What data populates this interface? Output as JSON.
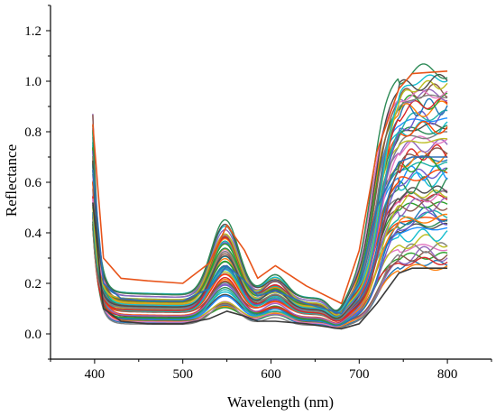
{
  "chart_data": {
    "type": "line",
    "xlabel": "Wavelength (nm)",
    "ylabel": "Reflectance",
    "xlim": [
      350,
      850
    ],
    "ylim": [
      -0.1,
      1.3
    ],
    "x_ticks": [
      400,
      500,
      600,
      700,
      800
    ],
    "x_tick_labels": [
      "400",
      "500",
      "600",
      "700",
      "800"
    ],
    "y_ticks": [
      0.0,
      0.2,
      0.4,
      0.6,
      0.8,
      1.0,
      1.2
    ],
    "y_tick_labels": [
      "0.0",
      "0.2",
      "0.4",
      "0.6",
      "0.8",
      "1.0",
      "1.2"
    ],
    "grid": false,
    "legend": "none",
    "series_count": 60,
    "x": [
      398,
      402,
      410,
      420,
      440,
      460,
      480,
      500,
      515,
      530,
      545,
      552,
      565,
      580,
      590,
      605,
      620,
      640,
      660,
      675,
      690,
      700,
      720,
      740,
      760,
      780,
      800
    ],
    "reference_series": [
      {
        "x": [
          398,
          410,
          430,
          460,
          500,
          530,
          550,
          570,
          585,
          605,
          640,
          680,
          700,
          720,
          745,
          760,
          800
        ],
        "y": [
          0.83,
          0.3,
          0.22,
          0.21,
          0.2,
          0.28,
          0.43,
          0.33,
          0.22,
          0.27,
          0.19,
          0.12,
          0.33,
          0.72,
          0.97,
          1.03,
          1.04
        ]
      },
      {
        "x": [
          398,
          410,
          430,
          460,
          500,
          530,
          550,
          570,
          585,
          605,
          640,
          680,
          700,
          720,
          745,
          760,
          800
        ],
        "y": [
          0.52,
          0.1,
          0.05,
          0.04,
          0.04,
          0.06,
          0.09,
          0.07,
          0.05,
          0.05,
          0.04,
          0.02,
          0.04,
          0.12,
          0.24,
          0.26,
          0.26
        ]
      },
      {
        "x": [
          398,
          410,
          430,
          460,
          500,
          530,
          550,
          570,
          585,
          605,
          640,
          680,
          700,
          720,
          745,
          760,
          800
        ],
        "y": [
          0.65,
          0.2,
          0.14,
          0.13,
          0.13,
          0.18,
          0.27,
          0.21,
          0.15,
          0.17,
          0.12,
          0.08,
          0.2,
          0.5,
          0.68,
          0.7,
          0.7
        ]
      }
    ],
    "colors": [
      "#1f77b4",
      "#ff7f0e",
      "#2ca02c",
      "#d62728",
      "#9467bd",
      "#8c564b",
      "#e377c2",
      "#7f7f7f",
      "#bcbd22",
      "#17becf",
      "#4c4c4c",
      "#2e8b57",
      "#1e90ff",
      "#ff4500",
      "#6a5acd",
      "#20b2aa"
    ]
  }
}
